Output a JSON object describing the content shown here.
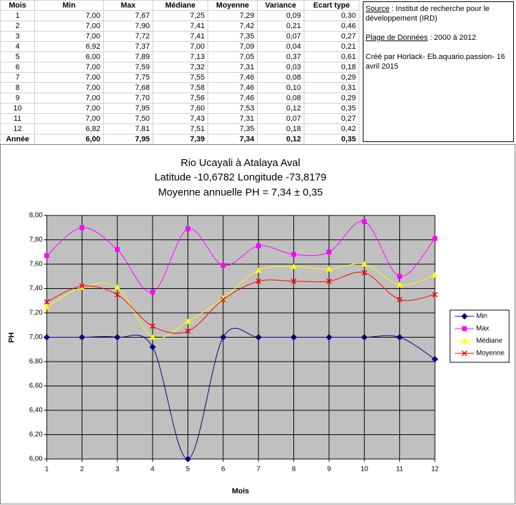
{
  "table": {
    "headers": [
      "Mois",
      "Min",
      "Max",
      "Médiane",
      "Moyenne",
      "Variance",
      "Ecart type"
    ],
    "rows": [
      [
        "1",
        "7,00",
        "7,67",
        "7,25",
        "7,29",
        "0,09",
        "0,30"
      ],
      [
        "2",
        "7,00",
        "7,90",
        "7,41",
        "7,42",
        "0,21",
        "0,46"
      ],
      [
        "3",
        "7,00",
        "7,72",
        "7,41",
        "7,35",
        "0,07",
        "0,27"
      ],
      [
        "4",
        "6,92",
        "7,37",
        "7,00",
        "7,09",
        "0,04",
        "0,21"
      ],
      [
        "5",
        "6,00",
        "7,89",
        "7,13",
        "7,05",
        "0,37",
        "0,61"
      ],
      [
        "6",
        "7,00",
        "7,59",
        "7,32",
        "7,31",
        "0,03",
        "0,18"
      ],
      [
        "7",
        "7,00",
        "7,75",
        "7,55",
        "7,46",
        "0,08",
        "0,29"
      ],
      [
        "8",
        "7,00",
        "7,68",
        "7,58",
        "7,46",
        "0,10",
        "0,31"
      ],
      [
        "9",
        "7,00",
        "7,70",
        "7,56",
        "7,46",
        "0,08",
        "0,29"
      ],
      [
        "10",
        "7,00",
        "7,95",
        "7,60",
        "7,53",
        "0,12",
        "0,35"
      ],
      [
        "11",
        "7,00",
        "7,50",
        "7,43",
        "7,31",
        "0,07",
        "0,27"
      ],
      [
        "12",
        "6,82",
        "7,81",
        "7,51",
        "7,35",
        "0,18",
        "0,42"
      ],
      [
        "Année",
        "6,00",
        "7,95",
        "7,39",
        "7,34",
        "0,12",
        "0,35"
      ]
    ]
  },
  "source": {
    "source_label": "Source",
    "source_text": " : Institut de recherche pour le développement (IRD)",
    "range_label": "Plage de Données",
    "range_text": " : 2000 à 2012",
    "credit": "Créé par Horlack- Eb.aquario.passion- 16 avril 2015"
  },
  "chart_data": {
    "type": "line",
    "title": [
      "Rio Ucayali à Atalaya Aval",
      "Latitude -10,6782 Longitude -73,8179",
      "Moyenne annuelle PH = 7,34 ± 0,35"
    ],
    "x_label": "Mois",
    "y_label": "PH",
    "x": [
      1,
      2,
      3,
      4,
      5,
      6,
      7,
      8,
      9,
      10,
      11,
      12
    ],
    "xlim": [
      1,
      12
    ],
    "xticks": [
      1,
      2,
      3,
      4,
      5,
      6,
      7,
      8,
      9,
      10,
      11,
      12
    ],
    "ylim": [
      6,
      8
    ],
    "yticks": [
      {
        "value": 6,
        "label": "6,00"
      },
      {
        "value": 6.2,
        "label": "6,20"
      },
      {
        "value": 6.4,
        "label": "6,40"
      },
      {
        "value": 6.6,
        "label": "6,60"
      },
      {
        "value": 6.8,
        "label": "6,80"
      },
      {
        "value": 7,
        "label": "7,00"
      },
      {
        "value": 7.2,
        "label": "7,20"
      },
      {
        "value": 7.4,
        "label": "7,40"
      },
      {
        "value": 7.6,
        "label": "7,60"
      },
      {
        "value": 7.8,
        "label": "7,80"
      },
      {
        "value": 8,
        "label": "8,00"
      }
    ],
    "grid": true,
    "smooth": true,
    "legend": "right",
    "series": [
      {
        "name": "Min",
        "color": "#000080",
        "marker": "diamond",
        "values": [
          7,
          7,
          7,
          6.92,
          6,
          7,
          7,
          7,
          7,
          7,
          7,
          6.82
        ]
      },
      {
        "name": "Max",
        "color": "#ff00ff",
        "marker": "square",
        "values": [
          7.67,
          7.9,
          7.72,
          7.37,
          7.89,
          7.59,
          7.75,
          7.68,
          7.7,
          7.95,
          7.5,
          7.81
        ]
      },
      {
        "name": "Médiane",
        "color": "#ffff00",
        "marker": "triangle",
        "values": [
          7.25,
          7.41,
          7.41,
          7,
          7.13,
          7.32,
          7.55,
          7.58,
          7.56,
          7.6,
          7.43,
          7.51
        ]
      },
      {
        "name": "Moyenne",
        "color": "#ff0000",
        "marker": "x",
        "values": [
          7.29,
          7.42,
          7.35,
          7.09,
          7.05,
          7.31,
          7.46,
          7.46,
          7.46,
          7.53,
          7.31,
          7.35
        ]
      }
    ]
  }
}
